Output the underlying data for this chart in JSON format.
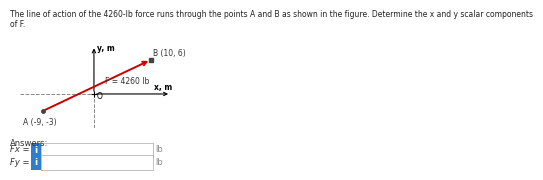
{
  "title_line1": "The line of action of the 4260-lb force runs through the points A and B as shown in the figure. Determine the x and y scalar components",
  "title_line2": "of F.",
  "point_A": [
    -9,
    -3
  ],
  "point_B": [
    10,
    6
  ],
  "force_label": "F = 4260 lb",
  "point_B_label": "B (10, 6)",
  "point_A_label": "A (-9, -3)",
  "origin_label": "O",
  "x_axis_label": "x, m",
  "y_axis_label": "y, m",
  "arrow_color": "#cc0000",
  "axis_color": "#000000",
  "dashed_color": "#888888",
  "dot_color": "#333333",
  "background_color": "#ffffff",
  "answer_label": "Answers:",
  "fx_label": "Fx =",
  "fy_label": "Fy =",
  "unit_label": "lb",
  "box_color": "#2b7fce",
  "title_fontsize": 5.5,
  "label_fontsize": 5.5,
  "answer_fontsize": 6.0
}
